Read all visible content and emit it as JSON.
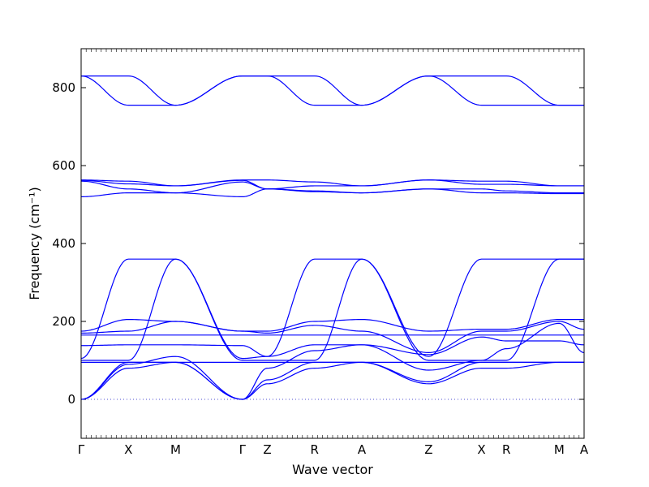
{
  "chart_data": {
    "type": "line",
    "xlabel": "Wave vector",
    "ylabel": "Frequency (cm⁻¹)",
    "ylim": [
      -100,
      900
    ],
    "y_ticks": [
      0,
      200,
      400,
      600,
      800
    ],
    "x_ticks": [
      {
        "label": "Γ",
        "x": 0
      },
      {
        "label": "X",
        "x": 0.5
      },
      {
        "label": "M",
        "x": 1.0
      },
      {
        "label": "Γ",
        "x": 1.7071
      },
      {
        "label": "Z",
        "x": 1.9707
      },
      {
        "label": "R",
        "x": 2.4707
      },
      {
        "label": "A",
        "x": 2.9707
      },
      {
        "label": "Z",
        "x": 3.6778
      },
      {
        "label": "X",
        "x": 4.2369
      },
      {
        "label": "R",
        "x": 4.5005
      },
      {
        "label": "M",
        "x": 5.0595
      },
      {
        "label": "A",
        "x": 5.3231
      }
    ],
    "xlim": [
      0,
      5.3231
    ],
    "zero_line": {
      "style": "dotted",
      "color": "#4d4dd1"
    },
    "line_color": "#0000ff",
    "series": [
      {
        "x": [
          0,
          0.5,
          1.0,
          1.7071,
          1.9707,
          2.4707,
          2.9707,
          3.6778,
          4.2369,
          4.5005,
          5.0595,
          5.3231
        ],
        "y": [
          830,
          830,
          755,
          830,
          830,
          830,
          755,
          830,
          830,
          830,
          755,
          755
        ]
      },
      {
        "x": [
          0,
          0.5,
          1.0,
          1.7071,
          1.9707,
          2.4707,
          2.9707,
          3.6778,
          4.2369,
          4.5005,
          5.0595,
          5.3231
        ],
        "y": [
          830,
          755,
          755,
          830,
          830,
          755,
          755,
          830,
          755,
          755,
          755,
          755
        ]
      },
      {
        "x": [
          0,
          0.5,
          1.0,
          1.7071,
          1.9707,
          2.4707,
          2.9707,
          3.6778,
          4.2369,
          4.5005,
          5.0595,
          5.3231
        ],
        "y": [
          563,
          560,
          548,
          563,
          563,
          558,
          548,
          563,
          560,
          560,
          548,
          548
        ]
      },
      {
        "x": [
          0,
          0.5,
          1.0,
          1.7071,
          1.9707,
          2.4707,
          2.9707,
          3.6778,
          4.2369,
          4.5005,
          5.0595,
          5.3231
        ],
        "y": [
          562,
          553,
          548,
          562,
          540,
          548,
          548,
          563,
          552,
          552,
          548,
          548
        ]
      },
      {
        "x": [
          0,
          0.5,
          1.0,
          1.7071,
          1.9707,
          2.4707,
          2.9707,
          3.6778,
          4.2369,
          4.5005,
          5.0595,
          5.3231
        ],
        "y": [
          560,
          540,
          530,
          558,
          540,
          535,
          530,
          540,
          540,
          535,
          530,
          530
        ]
      },
      {
        "x": [
          0,
          0.5,
          1.0,
          1.7071,
          1.9707,
          2.4707,
          2.9707,
          3.6778,
          4.2369,
          4.5005,
          5.0595,
          5.3231
        ],
        "y": [
          520,
          530,
          530,
          520,
          540,
          533,
          530,
          540,
          530,
          530,
          528,
          528
        ]
      },
      {
        "x": [
          0,
          0.5,
          1.0,
          1.7071,
          1.9707,
          2.4707,
          2.9707,
          3.6778,
          4.2369,
          4.5005,
          5.0595,
          5.3231
        ],
        "y": [
          105,
          360,
          360,
          105,
          110,
          360,
          360,
          110,
          360,
          360,
          360,
          360
        ]
      },
      {
        "x": [
          0,
          0.5,
          1.0,
          1.7071,
          1.9707,
          2.4707,
          2.9707,
          3.6778,
          4.2369,
          4.5005,
          5.0595,
          5.3231
        ],
        "y": [
          100,
          100,
          360,
          100,
          100,
          100,
          360,
          100,
          100,
          100,
          360,
          360
        ]
      },
      {
        "x": [
          0,
          0.5,
          1.0,
          1.7071,
          1.9707,
          2.4707,
          2.9707,
          3.6778,
          4.2369,
          4.5005,
          5.0595,
          5.3231
        ],
        "y": [
          175,
          205,
          200,
          175,
          175,
          200,
          205,
          175,
          180,
          180,
          205,
          205
        ]
      },
      {
        "x": [
          0,
          0.5,
          1.0,
          1.7071,
          1.9707,
          2.4707,
          2.9707,
          3.6778,
          4.2369,
          4.5005,
          5.0595,
          5.3231
        ],
        "y": [
          170,
          175,
          200,
          175,
          170,
          190,
          175,
          120,
          175,
          175,
          200,
          180
        ]
      },
      {
        "x": [
          0,
          0.5,
          1.0,
          1.7071,
          1.9707,
          2.4707,
          2.9707,
          3.6778,
          4.2369,
          4.5005,
          5.0595,
          5.3231
        ],
        "y": [
          165,
          165,
          165,
          165,
          165,
          165,
          165,
          165,
          165,
          165,
          165,
          165
        ]
      },
      {
        "x": [
          0,
          0.5,
          1.0,
          1.7071,
          1.9707,
          2.4707,
          2.9707,
          3.6778,
          4.2369,
          4.5005,
          5.0595,
          5.3231
        ],
        "y": [
          138,
          140,
          140,
          138,
          110,
          140,
          140,
          115,
          160,
          150,
          150,
          140
        ]
      },
      {
        "x": [
          0,
          0.5,
          1.0,
          1.7071,
          1.9707,
          2.4707,
          2.9707,
          3.6778,
          4.2369,
          4.5005,
          5.0595,
          5.3231
        ],
        "y": [
          95,
          95,
          95,
          95,
          95,
          95,
          95,
          95,
          95,
          95,
          95,
          95
        ]
      },
      {
        "x": [
          0,
          0.5,
          1.0,
          1.7071,
          1.9707,
          2.4707,
          2.9707,
          3.6778,
          4.2369,
          4.5005,
          5.0595,
          5.3231
        ],
        "y": [
          0,
          90,
          110,
          0,
          80,
          125,
          140,
          75,
          100,
          130,
          195,
          120
        ]
      },
      {
        "x": [
          0,
          0.5,
          1.0,
          1.7071,
          1.9707,
          2.4707,
          2.9707,
          3.6778,
          4.2369,
          4.5005,
          5.0595,
          5.3231
        ],
        "y": [
          0,
          95,
          95,
          0,
          50,
          95,
          95,
          45,
          95,
          95,
          95,
          95
        ]
      },
      {
        "x": [
          0,
          0.5,
          1.0,
          1.7071,
          1.9707,
          2.4707,
          2.9707,
          3.6778,
          4.2369,
          4.5005,
          5.0595,
          5.3231
        ],
        "y": [
          0,
          80,
          95,
          0,
          40,
          80,
          95,
          40,
          80,
          80,
          95,
          95
        ]
      }
    ]
  }
}
